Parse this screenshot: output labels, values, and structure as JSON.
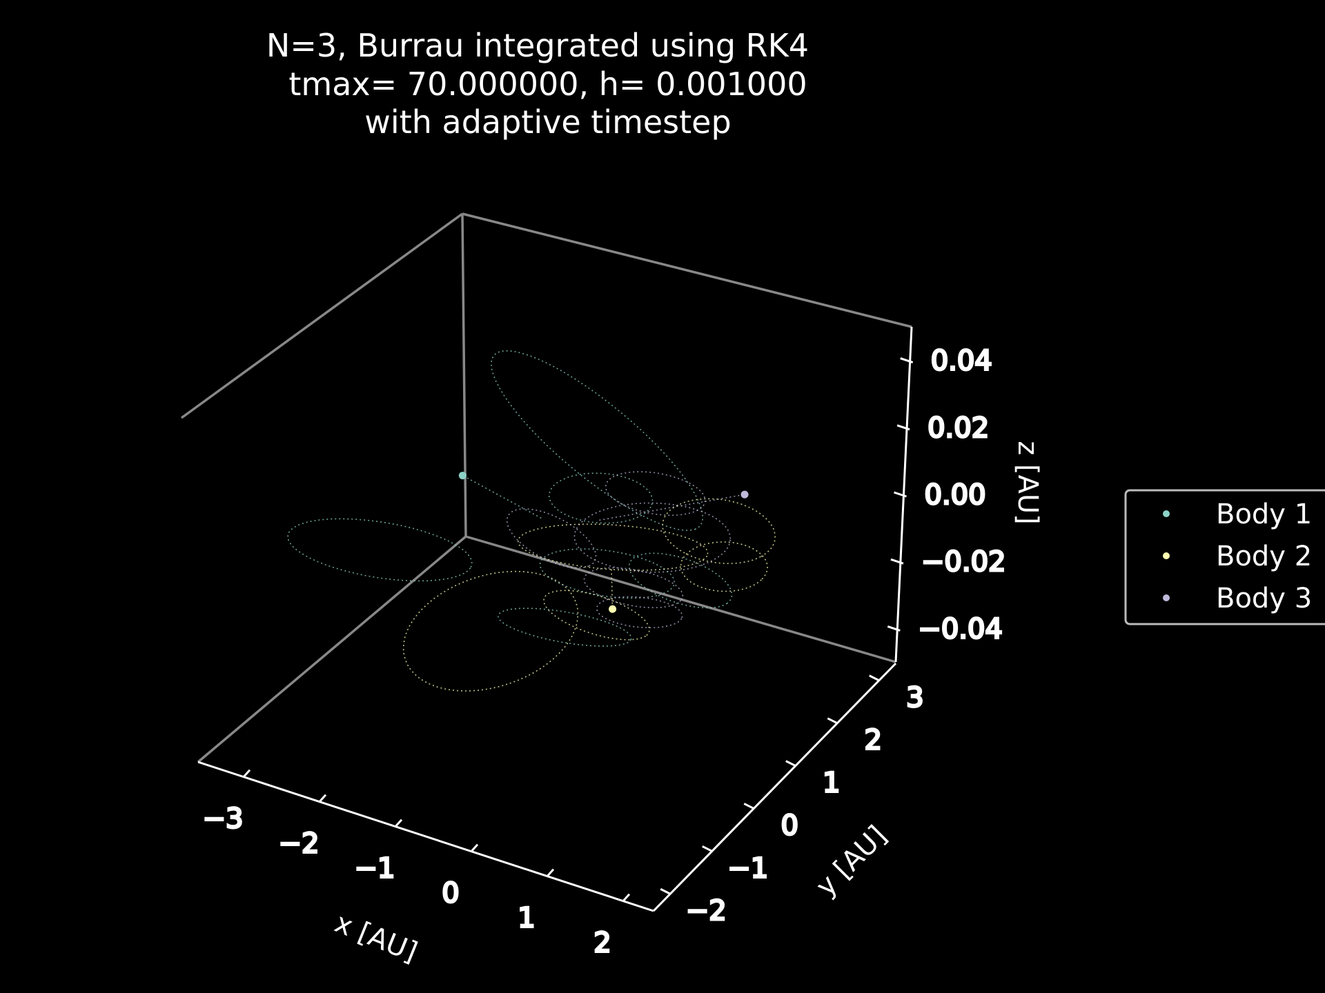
{
  "chart_data": {
    "type": "scatter",
    "projection": "3d",
    "title_lines": [
      "N=3, Burrau integrated using RK4",
      "tmax= 70.000000, h= 0.001000",
      "with adaptive timestep"
    ],
    "xlabel": "x [AU]",
    "ylabel": "y [AU]",
    "zlabel": "z [AU]",
    "x_ticks": [
      "−3",
      "−2",
      "−1",
      "0",
      "1",
      "2"
    ],
    "y_ticks": [
      "−2",
      "−1",
      "0",
      "1",
      "2",
      "3"
    ],
    "z_ticks": [
      "−0.04",
      "−0.02",
      "0.00",
      "0.02",
      "0.04"
    ],
    "xlim": [
      -3.6,
      2.4
    ],
    "ylim": [
      -2.4,
      3.4
    ],
    "zlim": [
      -0.05,
      0.05
    ],
    "background": "#000000",
    "grid": false,
    "legend_position": "right",
    "series": [
      {
        "name": "Body 1",
        "color": "#8dd3c7",
        "final_position": [
          -2.2,
          1.2,
          0.0
        ],
        "trajectory_style": "dotted"
      },
      {
        "name": "Body 2",
        "color": "#ffffb3",
        "final_position": [
          0.6,
          -0.3,
          0.0
        ],
        "trajectory_style": "dotted"
      },
      {
        "name": "Body 3",
        "color": "#bebada",
        "final_position": [
          0.8,
          2.5,
          0.0
        ],
        "trajectory_style": "dotted"
      }
    ]
  }
}
